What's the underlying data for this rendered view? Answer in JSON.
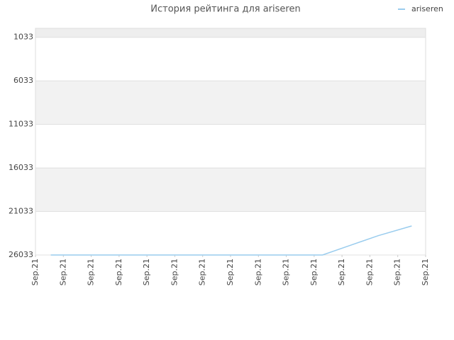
{
  "chart_data": {
    "type": "line",
    "title": "История рейтинга для ariseren",
    "xlim": [
      0,
      14
    ],
    "xticks": [
      {
        "value": 0,
        "label": "Sep.21"
      },
      {
        "value": 1,
        "label": "Sep.21"
      },
      {
        "value": 2,
        "label": "Sep.21"
      },
      {
        "value": 3,
        "label": "Sep.21"
      },
      {
        "value": 4,
        "label": "Sep.21"
      },
      {
        "value": 5,
        "label": "Sep.21"
      },
      {
        "value": 6,
        "label": "Sep.21"
      },
      {
        "value": 7,
        "label": "Sep.21"
      },
      {
        "value": 8,
        "label": "Sep.21"
      },
      {
        "value": 9,
        "label": "Sep.21"
      },
      {
        "value": 10,
        "label": "Sep.21"
      },
      {
        "value": 11,
        "label": "Sep.21"
      },
      {
        "value": 12,
        "label": "Sep.21"
      },
      {
        "value": 13,
        "label": "Sep.21"
      },
      {
        "value": 14,
        "label": "Sep.21"
      }
    ],
    "ylim": [
      26033,
      0
    ],
    "yticks": [
      1033,
      6033,
      11033,
      16033,
      21033,
      26033
    ],
    "grid": true,
    "legend": "top-right",
    "series": [
      {
        "name": "ariseren",
        "color": "#99ccee",
        "x": [
          0.55,
          1.55,
          2.55,
          3.55,
          4.55,
          5.55,
          6.55,
          7.55,
          8.55,
          9.55,
          10.3,
          11.3,
          12.3,
          13.5
        ],
        "values": [
          26033,
          26033,
          26033,
          26033,
          26033,
          26033,
          26033,
          26033,
          26033,
          26033,
          26033,
          24922,
          23811,
          22700
        ]
      }
    ]
  }
}
